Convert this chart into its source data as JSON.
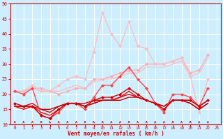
{
  "background_color": "#cceeff",
  "grid_color": "#ffffff",
  "xlabel": "Vent moyen/en rafales ( km/h )",
  "xlabel_color": "#cc0000",
  "tick_color": "#cc0000",
  "xlim": [
    -0.5,
    23.5
  ],
  "ylim": [
    10,
    50
  ],
  "yticks": [
    10,
    15,
    20,
    25,
    30,
    35,
    40,
    45,
    50
  ],
  "xticks": [
    0,
    1,
    2,
    3,
    4,
    5,
    6,
    7,
    8,
    9,
    10,
    11,
    12,
    13,
    14,
    15,
    16,
    17,
    18,
    19,
    20,
    21,
    22,
    23
  ],
  "series": [
    {
      "y": [
        21,
        21,
        22,
        22,
        21,
        20,
        21,
        22,
        22,
        25,
        25,
        26,
        27,
        28,
        28,
        30,
        30,
        30,
        31,
        32,
        27,
        28,
        33
      ],
      "color": "#ffaaaa",
      "lw": 0.9,
      "marker": "D",
      "ms": 2.0,
      "zorder": 2
    },
    {
      "y": [
        21,
        21,
        22,
        21,
        21,
        21,
        22,
        23,
        22,
        24,
        25,
        25,
        26,
        27,
        27,
        29,
        29,
        29,
        30,
        31,
        26,
        27,
        32
      ],
      "color": "#ffbbbb",
      "lw": 0.9,
      "marker": "None",
      "ms": 0,
      "zorder": 2
    },
    {
      "y": [
        21,
        21,
        23,
        21,
        21,
        23,
        25,
        26,
        25,
        34,
        47,
        40,
        36,
        44,
        36,
        35,
        30,
        30,
        31,
        32,
        26,
        14,
        25
      ],
      "color": "#ffbbbb",
      "lw": 0.9,
      "marker": "D",
      "ms": 2.0,
      "zorder": 2
    },
    {
      "y": [
        21,
        20,
        22,
        13,
        12,
        14,
        17,
        17,
        15,
        19,
        23,
        23,
        26,
        29,
        25,
        22,
        17,
        14,
        20,
        20,
        19,
        16,
        22
      ],
      "color": "#ff4444",
      "lw": 1.0,
      "marker": "D",
      "ms": 2.0,
      "zorder": 4
    },
    {
      "y": [
        17,
        16,
        16,
        13,
        12,
        15,
        17,
        17,
        16,
        18,
        19,
        19,
        20,
        22,
        20,
        18,
        17,
        15,
        18,
        18,
        18,
        16,
        18
      ],
      "color": "#cc0000",
      "lw": 1.0,
      "marker": "D",
      "ms": 2.0,
      "zorder": 4
    },
    {
      "y": [
        16,
        15,
        16,
        14,
        13,
        15,
        17,
        17,
        16,
        17,
        18,
        18,
        19,
        21,
        19,
        18,
        17,
        15,
        18,
        18,
        17,
        15,
        17
      ],
      "color": "#ff0000",
      "lw": 1.0,
      "marker": "None",
      "ms": 0,
      "zorder": 3
    },
    {
      "y": [
        16,
        16,
        17,
        15,
        14,
        16,
        17,
        17,
        17,
        18,
        18,
        18,
        19,
        20,
        19,
        18,
        17,
        16,
        18,
        18,
        18,
        16,
        18
      ],
      "color": "#dd0000",
      "lw": 1.0,
      "marker": "None",
      "ms": 0,
      "zorder": 3
    },
    {
      "y": [
        16,
        16,
        16,
        15,
        15,
        16,
        17,
        17,
        16,
        17,
        18,
        18,
        18,
        19,
        19,
        18,
        17,
        16,
        18,
        18,
        17,
        15,
        17
      ],
      "color": "#bb0000",
      "lw": 1.0,
      "marker": "None",
      "ms": 0,
      "zorder": 3
    }
  ]
}
